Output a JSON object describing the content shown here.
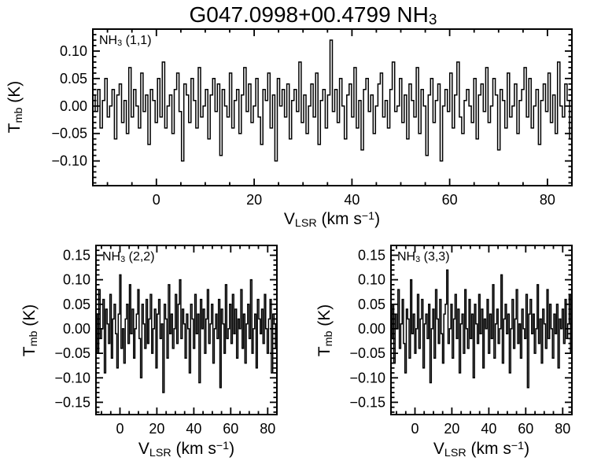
{
  "title": {
    "pre": "G047.0998+00.4799 NH",
    "sub": "3"
  },
  "colors": {
    "line": "#000000",
    "frame": "#000000",
    "background": "#ffffff"
  },
  "axis_labels": {
    "x": {
      "pre": "V",
      "sub": "LSR",
      "mid": " (km s",
      "sup": "−1",
      "post": ")"
    },
    "y": {
      "pre": "T",
      "sub": "mb",
      "post": " (K)"
    }
  },
  "chart_data": [
    {
      "type": "line",
      "name": "NH3 (1,1) spectrum",
      "label": {
        "pre": "NH",
        "sub": "3",
        "post": " (1,1)"
      },
      "xlabel": "V_LSR (km s⁻¹)",
      "ylabel": "T_mb (K)",
      "xlim": [
        -13,
        85
      ],
      "ylim": [
        -0.145,
        0.14
      ],
      "xticks": [
        0,
        20,
        40,
        60,
        80
      ],
      "xtick_labels": [
        "0",
        "20",
        "40",
        "60",
        "80"
      ],
      "yticks": [
        -0.1,
        -0.05,
        0,
        0.05,
        0.1
      ],
      "ytick_labels": [
        "−0.10",
        "−0.05",
        "0.00",
        "0.05",
        "0.10"
      ],
      "values": [
        0.02,
        -0.01,
        0.03,
        -0.04,
        0.01,
        0.05,
        -0.02,
        0,
        0.03,
        -0.06,
        0.02,
        0.04,
        -0.03,
        0.01,
        -0.05,
        0.07,
        -0.02,
        0.03,
        0,
        -0.04,
        0.06,
        -0.01,
        0.02,
        -0.07,
        0.03,
        0.01,
        -0.03,
        0.05,
        -0.02,
        0.08,
        -0.04,
        0,
        0.02,
        -0.05,
        0.03,
        0.06,
        -0.01,
        -0.1,
        0.04,
        0.02,
        -0.03,
        0.05,
        0.01,
        -0.04,
        0.07,
        -0.02,
        0,
        0.03,
        -0.06,
        0.02,
        0.05,
        -0.01,
        0.04,
        -0.09,
        0.03,
        0,
        -0.02,
        0.06,
        -0.04,
        0.01,
        0.03,
        -0.05,
        0.02,
        0.07,
        -0.01,
        0.04,
        -0.03,
        0,
        0.05,
        -0.02,
        -0.07,
        0.03,
        0.01,
        0.06,
        -0.04,
        0.02,
        -0.1,
        0.05,
        0,
        0.03,
        -0.02,
        0.04,
        -0.06,
        0.01,
        0.03,
        -0.01,
        0.08,
        -0.03,
        0.02,
        -0.05,
        0,
        0.04,
        -0.02,
        0.06,
        -0.07,
        0.01,
        0.03,
        -0.04,
        0.02,
        0.12,
        -0.01,
        0.03,
        -0.03,
        0.05,
        0,
        -0.06,
        0.02,
        0.04,
        -0.02,
        0.07,
        -0.04,
        0.01,
        -0.08,
        0.03,
        0.05,
        -0.01,
        0.02,
        -0.05,
        0,
        0.04,
        0.06,
        -0.02,
        0.01,
        -0.04,
        0.03,
        0.08,
        -0.01,
        0,
        0.05,
        -0.03,
        0.02,
        -0.06,
        0.04,
        0.01,
        -0.02,
        0.07,
        -0.05,
        0.03,
        0,
        -0.09,
        0.02,
        0.05,
        -0.03,
        0.01,
        0.04,
        -0.1,
        0,
        0.03,
        -0.01,
        0.06,
        -0.04,
        0.02,
        0.08,
        -0.02,
        -0.05,
        0.01,
        0.03,
        0,
        -0.03,
        0.05,
        -0.06,
        0.02,
        0.04,
        -0.01,
        0.07,
        -0.03,
        0,
        0.05,
        0.02,
        -0.08,
        0.03,
        0.01,
        -0.04,
        0.06,
        -0.02,
        0,
        0.04,
        -0.05,
        0.01,
        0.03,
        0.07,
        -0.02,
        0.05,
        -0.04,
        0,
        0.03,
        -0.07,
        0.01,
        0.04,
        -0.01,
        0.06,
        -0.03,
        0.02,
        -0.05,
        0.08,
        0,
        -0.02,
        0.04,
        0.01,
        -0.06
      ]
    },
    {
      "type": "line",
      "name": "NH3 (2,2) spectrum",
      "label": {
        "pre": "NH",
        "sub": "3",
        "post": " (2,2)"
      },
      "xlabel": "V_LSR (km s⁻¹)",
      "ylabel": "T_mb (K)",
      "xlim": [
        -13,
        85
      ],
      "ylim": [
        -0.175,
        0.17
      ],
      "xticks": [
        0,
        20,
        40,
        60,
        80
      ],
      "xtick_labels": [
        "0",
        "20",
        "40",
        "60",
        "80"
      ],
      "yticks": [
        -0.15,
        -0.1,
        -0.05,
        0,
        0.05,
        0.1,
        0.15
      ],
      "ytick_labels": [
        "−0.15",
        "−0.10",
        "−0.05",
        "0.00",
        "0.05",
        "0.10",
        "0.15"
      ],
      "values": [
        0.03,
        -0.05,
        0.08,
        -0.02,
        0,
        0.06,
        -0.09,
        0.04,
        0.01,
        -0.03,
        0.07,
        -0.06,
        0.02,
        0.05,
        -0.01,
        -0.08,
        0.03,
        0.11,
        -0.04,
        0,
        -0.07,
        0.02,
        0.05,
        -0.03,
        0.09,
        -0.01,
        0.04,
        -0.06,
        0,
        0.03,
        0.08,
        -0.02,
        -0.1,
        0.05,
        0.01,
        -0.04,
        0.06,
        -0.03,
        0.02,
        0.07,
        -0.05,
        0,
        0.04,
        -0.08,
        0.03,
        0.06,
        -0.02,
        0.01,
        -0.13,
        0.05,
        0.02,
        -0.06,
        0.09,
        -0.01,
        0.03,
        -0.04,
        0,
        0.07,
        -0.03,
        0.05,
        0.1,
        -0.02,
        0.04,
        0.01,
        -0.06,
        0.03,
        0,
        -0.09,
        0.05,
        0.02,
        -0.04,
        0.07,
        -0.01,
        0.03,
        -0.11,
        0.06,
        0,
        0.04,
        -0.05,
        0.02,
        0.08,
        -0.03,
        0.01,
        0.05,
        -0.07,
        0,
        0.03,
        -0.02,
        0.06,
        -0.12,
        0.04,
        0.01,
        -0.05,
        0.09,
        -0.02,
        0,
        0.05,
        -0.03,
        0.07,
        -0.01,
        0.04,
        -0.06,
        0.02,
        0,
        0.08,
        -0.04,
        0.03,
        -0.07,
        0.01,
        0.05,
        -0.02,
        0.1,
        -0.05,
        0,
        0.03,
        -0.08,
        0.06,
        0.02,
        -0.01,
        0.04,
        -0.03,
        0.07,
        0,
        -0.05,
        0.02,
        0.06,
        -0.09,
        0.03,
        0.01,
        -0.04
      ]
    },
    {
      "type": "line",
      "name": "NH3 (3,3) spectrum",
      "label": {
        "pre": "NH",
        "sub": "3",
        "post": " (3,3)"
      },
      "xlabel": "V_LSR (km s⁻¹)",
      "ylabel": "T_mb (K)",
      "xlim": [
        -13,
        85
      ],
      "ylim": [
        -0.175,
        0.17
      ],
      "xticks": [
        0,
        20,
        40,
        60,
        80
      ],
      "xtick_labels": [
        "0",
        "20",
        "40",
        "60",
        "80"
      ],
      "yticks": [
        -0.15,
        -0.1,
        -0.05,
        0,
        0.05,
        0.1,
        0.15
      ],
      "ytick_labels": [
        "−0.15",
        "−0.10",
        "−0.05",
        "0.00",
        "0.05",
        "0.10",
        "0.15"
      ],
      "values": [
        -0.02,
        0.05,
        -0.07,
        0.03,
        0,
        0.08,
        -0.04,
        0.01,
        0.06,
        -0.03,
        -0.09,
        0.04,
        0.02,
        -0.06,
        0.1,
        -0.01,
        0.03,
        -0.05,
        0,
        0.07,
        -0.04,
        0.02,
        0.06,
        -0.08,
        0.01,
        0.03,
        -0.02,
        0.05,
        -0.11,
        0,
        0.04,
        -0.06,
        0.08,
        0.02,
        -0.03,
        0.06,
        -0.01,
        -0.07,
        0.03,
        0.05,
        0.12,
        -0.03,
        0,
        0.05,
        -0.06,
        0.02,
        0.07,
        -0.02,
        0.04,
        -0.09,
        0.01,
        0.03,
        -0.05,
        0.08,
        0,
        -0.04,
        0.06,
        -0.02,
        0.03,
        -0.1,
        0.05,
        0.01,
        -0.03,
        0.07,
        -0.01,
        0.04,
        -0.08,
        0.02,
        0,
        0.06,
        -0.05,
        0.03,
        -0.02,
        0.09,
        -0.06,
        0.01,
        0.04,
        -0.03,
        0,
        0.11,
        -0.07,
        0.02,
        0.05,
        -0.01,
        0.03,
        -0.09,
        0,
        0.06,
        -0.04,
        0.02,
        0.08,
        -0.03,
        0.01,
        -0.06,
        0.04,
        0,
        -0.02,
        0.07,
        -0.12,
        0.03,
        0.06,
        -0.01,
        0.03,
        -0.05,
        0,
        0.09,
        -0.03,
        0.02,
        -0.07,
        0.04,
        0.01,
        -0.04,
        0.08,
        -0.02,
        0.05,
        0,
        -0.06,
        0.03,
        -0.01,
        0.05,
        -0.08,
        0.02,
        0,
        0.04,
        -0.03,
        0.06,
        -0.02,
        0.01,
        0.07,
        -0.05
      ]
    }
  ]
}
